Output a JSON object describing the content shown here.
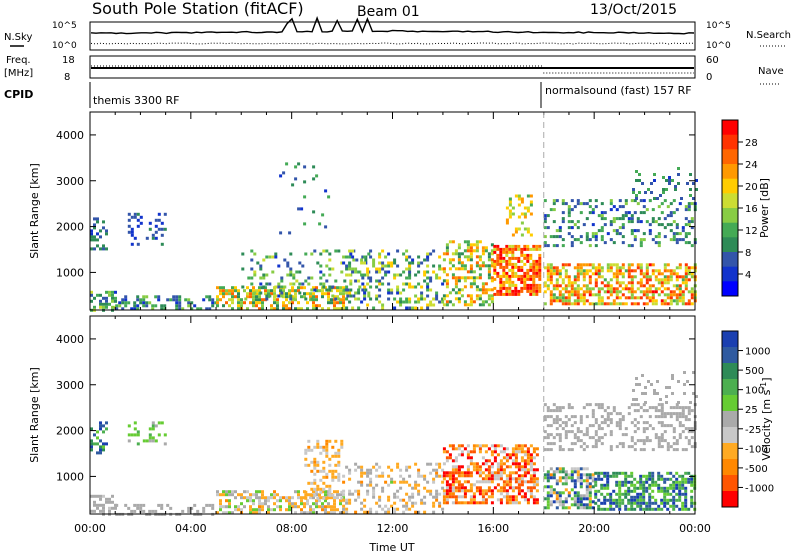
{
  "header": {
    "title": "South Pole Station (fitACF)",
    "beam": "Beam 01",
    "date": "13/Oct/2015"
  },
  "summary_panels": {
    "nsky_label": "N.Sky",
    "nsearch_label": "N.Search",
    "noise_ticks": [
      "10^5",
      "10^0"
    ],
    "noise_ticks_right": [
      "10^5",
      "10^0"
    ],
    "freq_label_line1": "Freq.",
    "freq_label_line2": "[MHz]",
    "freq_ticks": [
      "18",
      "8"
    ],
    "nave_label": "Nave",
    "nave_ticks": [
      "60",
      "0"
    ],
    "cpid_label": "CPID",
    "cpid_left": "themis 3300 RF",
    "cpid_right": "normalsound (fast) 157 RF",
    "cpid_change_hour": 18.0,
    "line_styles": {
      "nsky": "solid",
      "nsearch": "dotted",
      "freq": "solid",
      "nave": "dotted"
    }
  },
  "colorbars": {
    "power": {
      "label": "Power [dB]",
      "ticks": [
        "28",
        "24",
        "20",
        "16",
        "12",
        "8",
        "4"
      ],
      "colors": [
        "#ff0000",
        "#ff3300",
        "#ff6600",
        "#ff9900",
        "#ffcc00",
        "#ccdd33",
        "#88cc44",
        "#44aa55",
        "#2e8b57",
        "#3355aa",
        "#1133cc",
        "#0000ff"
      ]
    },
    "velocity": {
      "label": "Velocity [m s",
      "label_superscript": "-1",
      "label_end": "]",
      "ticks": [
        "1000",
        "500",
        "100",
        "25",
        "-25",
        "-100",
        "-500",
        "-1000"
      ],
      "colors": [
        "#1a3fb0",
        "#2f5aa0",
        "#2e8b57",
        "#4caf50",
        "#66cc33",
        "#aaaaaa",
        "#c8c8c8",
        "#ffaa22",
        "#ff8800",
        "#ff5500",
        "#ff0000"
      ]
    }
  },
  "chart_data": [
    {
      "type": "heatmap",
      "name": "power",
      "xlabel": "",
      "ylabel": "Slant Range [km]",
      "xlim": [
        0,
        24
      ],
      "ylim": [
        180,
        4500
      ],
      "yticks": [
        1000,
        2000,
        3000,
        4000
      ],
      "xticks_hours": [
        0,
        4,
        8,
        12,
        16,
        20,
        24
      ],
      "value_range_db": [
        0,
        30
      ],
      "scatter_regions": [
        {
          "x": [
            0.0,
            1.0
          ],
          "y": [
            200,
            600
          ],
          "v": [
            4,
            16
          ],
          "density": 0.55
        },
        {
          "x": [
            0.0,
            0.6
          ],
          "y": [
            1500,
            2200
          ],
          "v": [
            4,
            10
          ],
          "density": 0.4
        },
        {
          "x": [
            1.5,
            3.0
          ],
          "y": [
            1600,
            2300
          ],
          "v": [
            4,
            8
          ],
          "density": 0.25
        },
        {
          "x": [
            1.0,
            5.0
          ],
          "y": [
            200,
            500
          ],
          "v": [
            4,
            14
          ],
          "density": 0.5
        },
        {
          "x": [
            5.0,
            10.0
          ],
          "y": [
            200,
            700
          ],
          "v": [
            8,
            24
          ],
          "density": 0.6
        },
        {
          "x": [
            6.0,
            11.0
          ],
          "y": [
            400,
            1500
          ],
          "v": [
            4,
            16
          ],
          "density": 0.2
        },
        {
          "x": [
            7.5,
            9.5
          ],
          "y": [
            1800,
            3400
          ],
          "v": [
            4,
            12
          ],
          "density": 0.07
        },
        {
          "x": [
            10.0,
            14.0
          ],
          "y": [
            200,
            1500
          ],
          "v": [
            4,
            20
          ],
          "density": 0.3
        },
        {
          "x": [
            14.0,
            16.0
          ],
          "y": [
            300,
            1700
          ],
          "v": [
            8,
            24
          ],
          "density": 0.45
        },
        {
          "x": [
            16.0,
            17.8
          ],
          "y": [
            500,
            1600
          ],
          "v": [
            16,
            30
          ],
          "density": 0.7
        },
        {
          "x": [
            16.5,
            17.5
          ],
          "y": [
            1800,
            2700
          ],
          "v": [
            12,
            22
          ],
          "density": 0.3
        },
        {
          "x": [
            18.0,
            24.0
          ],
          "y": [
            300,
            1200
          ],
          "v": [
            12,
            28
          ],
          "density": 0.6
        },
        {
          "x": [
            18.0,
            24.0
          ],
          "y": [
            1600,
            2600
          ],
          "v": [
            4,
            14
          ],
          "density": 0.3
        },
        {
          "x": [
            21.5,
            24.0
          ],
          "y": [
            2600,
            3300
          ],
          "v": [
            4,
            12
          ],
          "density": 0.15
        }
      ]
    },
    {
      "type": "heatmap",
      "name": "velocity",
      "xlabel": "Time UT",
      "ylabel": "Slant Range [km]",
      "xlim": [
        0,
        24
      ],
      "ylim": [
        180,
        4500
      ],
      "yticks": [
        1000,
        2000,
        3000,
        4000
      ],
      "xtick_labels": [
        "00:00",
        "04:00",
        "08:00",
        "12:00",
        "16:00",
        "20:00",
        "00:00"
      ],
      "xticks_hours": [
        0,
        4,
        8,
        12,
        16,
        20,
        24
      ],
      "value_range_ms": [
        -1000,
        1000
      ],
      "scatter_regions": [
        {
          "x": [
            0.0,
            1.0
          ],
          "y": [
            200,
            600
          ],
          "v": [
            -100,
            100
          ],
          "density": 0.45
        },
        {
          "x": [
            0.0,
            0.6
          ],
          "y": [
            1500,
            2200
          ],
          "v": [
            100,
            1000
          ],
          "density": 0.4
        },
        {
          "x": [
            1.5,
            3.0
          ],
          "y": [
            1700,
            2200
          ],
          "v": [
            25,
            300
          ],
          "density": 0.25
        },
        {
          "x": [
            1.0,
            5.0
          ],
          "y": [
            200,
            400
          ],
          "v": [
            -25,
            25
          ],
          "density": 0.45
        },
        {
          "x": [
            5.0,
            10.0
          ],
          "y": [
            200,
            700
          ],
          "v": [
            -500,
            200
          ],
          "density": 0.55
        },
        {
          "x": [
            8.5,
            10.0
          ],
          "y": [
            500,
            1800
          ],
          "v": [
            -500,
            -100
          ],
          "density": 0.35
        },
        {
          "x": [
            10.0,
            14.0
          ],
          "y": [
            200,
            1300
          ],
          "v": [
            -500,
            100
          ],
          "density": 0.3
        },
        {
          "x": [
            14.0,
            17.8
          ],
          "y": [
            400,
            1700
          ],
          "v": [
            -1000,
            -100
          ],
          "density": 0.6
        },
        {
          "x": [
            18.0,
            20.0
          ],
          "y": [
            300,
            1200
          ],
          "v": [
            -500,
            1000
          ],
          "density": 0.6
        },
        {
          "x": [
            20.0,
            24.0
          ],
          "y": [
            300,
            1100
          ],
          "v": [
            100,
            1000
          ],
          "density": 0.6
        },
        {
          "x": [
            18.0,
            24.0
          ],
          "y": [
            1600,
            2600
          ],
          "v": [
            -25,
            25
          ],
          "density": 0.35
        },
        {
          "x": [
            21.5,
            24.0
          ],
          "y": [
            2600,
            3300
          ],
          "v": [
            -25,
            25
          ],
          "density": 0.15
        }
      ]
    }
  ]
}
